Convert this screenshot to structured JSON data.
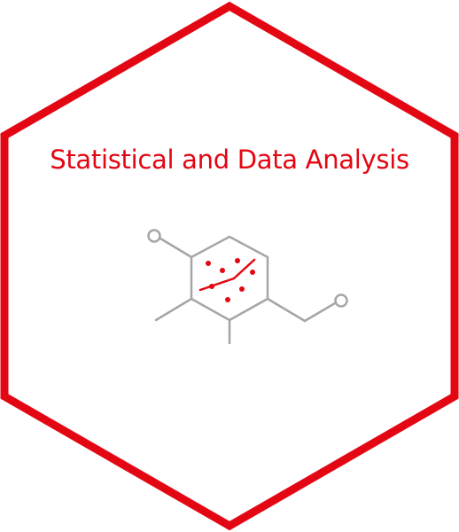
{
  "badge": {
    "title": "Statistical and Data Analysis",
    "accent_color": "#e30613",
    "icon_color": "#a6a6a6",
    "icon": "molecule-scatter-plot-icon"
  }
}
